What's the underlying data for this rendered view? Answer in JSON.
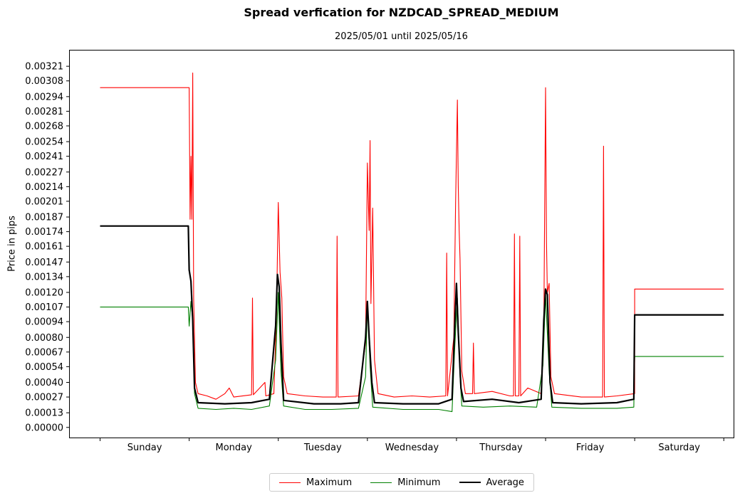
{
  "chart_data": {
    "type": "line",
    "title": "Spread verfication for NZDCAD_SPREAD_MEDIUM",
    "subtitle": "2025/05/01 until 2025/05/16",
    "xlabel": "",
    "ylabel": "Price in pips",
    "categories": [
      "Sunday",
      "Monday",
      "Tuesday",
      "Wednesday",
      "Thursday",
      "Friday",
      "Saturday"
    ],
    "yticks": [
      "0.00000",
      "0.00013",
      "0.00027",
      "0.00040",
      "0.00054",
      "0.00067",
      "0.00080",
      "0.00094",
      "0.00107",
      "0.00120",
      "0.00134",
      "0.00147",
      "0.00161",
      "0.00174",
      "0.00187",
      "0.00201",
      "0.00214",
      "0.00227",
      "0.00241",
      "0.00254",
      "0.00268",
      "0.00281",
      "0.00294",
      "0.00308",
      "0.00321"
    ],
    "ylim": [
      -9e-05,
      0.00335
    ],
    "xlim": [
      -0.34,
      7.11
    ],
    "grid": false,
    "legend_position": "bottom-center",
    "series": [
      {
        "name": "Maximum",
        "color": "#ff0000",
        "points": [
          [
            0.0,
            0.00302
          ],
          [
            1.0,
            0.00302
          ],
          [
            1.01,
            0.00185
          ],
          [
            1.02,
            0.00241
          ],
          [
            1.03,
            0.00185
          ],
          [
            1.04,
            0.00315
          ],
          [
            1.05,
            0.00115
          ],
          [
            1.07,
            0.0004
          ],
          [
            1.1,
            0.0003
          ],
          [
            1.2,
            0.00028
          ],
          [
            1.3,
            0.00025
          ],
          [
            1.4,
            0.0003
          ],
          [
            1.45,
            0.00035
          ],
          [
            1.5,
            0.00027
          ],
          [
            1.7,
            0.00029
          ],
          [
            1.71,
            0.00115
          ],
          [
            1.72,
            0.00029
          ],
          [
            1.85,
            0.0004
          ],
          [
            1.86,
            0.00028
          ],
          [
            1.95,
            0.0003
          ],
          [
            1.98,
            0.001
          ],
          [
            2.0,
            0.002
          ],
          [
            2.02,
            0.00138
          ],
          [
            2.04,
            0.00115
          ],
          [
            2.06,
            0.00045
          ],
          [
            2.1,
            0.0003
          ],
          [
            2.3,
            0.00028
          ],
          [
            2.5,
            0.00027
          ],
          [
            2.65,
            0.00027
          ],
          [
            2.66,
            0.0017
          ],
          [
            2.67,
            0.00027
          ],
          [
            2.9,
            0.00028
          ],
          [
            2.98,
            0.00075
          ],
          [
            3.0,
            0.00235
          ],
          [
            3.02,
            0.00175
          ],
          [
            3.03,
            0.00255
          ],
          [
            3.04,
            0.0011
          ],
          [
            3.06,
            0.00195
          ],
          [
            3.08,
            0.0006
          ],
          [
            3.12,
            0.0003
          ],
          [
            3.3,
            0.00027
          ],
          [
            3.5,
            0.00028
          ],
          [
            3.7,
            0.00027
          ],
          [
            3.88,
            0.00028
          ],
          [
            3.89,
            0.00155
          ],
          [
            3.9,
            0.00028
          ],
          [
            3.97,
            0.0008
          ],
          [
            3.99,
            0.002
          ],
          [
            4.01,
            0.00291
          ],
          [
            4.02,
            0.00215
          ],
          [
            4.03,
            0.00175
          ],
          [
            4.04,
            0.0015
          ],
          [
            4.06,
            0.0005
          ],
          [
            4.1,
            0.0003
          ],
          [
            4.18,
            0.0003
          ],
          [
            4.19,
            0.00075
          ],
          [
            4.2,
            0.0003
          ],
          [
            4.4,
            0.00032
          ],
          [
            4.6,
            0.00028
          ],
          [
            4.64,
            0.00028
          ],
          [
            4.65,
            0.00172
          ],
          [
            4.66,
            0.00028
          ],
          [
            4.7,
            0.00028
          ],
          [
            4.71,
            0.0017
          ],
          [
            4.72,
            0.00028
          ],
          [
            4.8,
            0.00035
          ],
          [
            4.95,
            0.0003
          ],
          [
            4.98,
            0.00085
          ],
          [
            5.0,
            0.00302
          ],
          [
            5.01,
            0.00165
          ],
          [
            5.02,
            0.0012
          ],
          [
            5.04,
            0.00128
          ],
          [
            5.06,
            0.00045
          ],
          [
            5.1,
            0.0003
          ],
          [
            5.4,
            0.00027
          ],
          [
            5.64,
            0.00027
          ],
          [
            5.65,
            0.0025
          ],
          [
            5.66,
            0.00027
          ],
          [
            5.8,
            0.00028
          ],
          [
            6.0,
            0.0003
          ],
          [
            6.0,
            0.00123
          ],
          [
            7.0,
            0.00123
          ]
        ]
      },
      {
        "name": "Minimum",
        "color": "#008000",
        "points": [
          [
            0.0,
            0.00107
          ],
          [
            0.99,
            0.00107
          ],
          [
            1.0,
            0.0009
          ],
          [
            1.02,
            0.00112
          ],
          [
            1.04,
            0.00095
          ],
          [
            1.06,
            0.0003
          ],
          [
            1.1,
            0.00017
          ],
          [
            1.3,
            0.00016
          ],
          [
            1.5,
            0.00017
          ],
          [
            1.7,
            0.00016
          ],
          [
            1.9,
            0.00019
          ],
          [
            1.97,
            0.0006
          ],
          [
            2.0,
            0.0012
          ],
          [
            2.03,
            0.0005
          ],
          [
            2.06,
            0.00019
          ],
          [
            2.3,
            0.00016
          ],
          [
            2.6,
            0.00016
          ],
          [
            2.9,
            0.00017
          ],
          [
            2.98,
            0.00045
          ],
          [
            3.0,
            0.0011
          ],
          [
            3.03,
            0.00055
          ],
          [
            3.06,
            0.00018
          ],
          [
            3.4,
            0.00016
          ],
          [
            3.8,
            0.00016
          ],
          [
            3.95,
            0.00014
          ],
          [
            3.98,
            0.0007
          ],
          [
            4.01,
            0.00115
          ],
          [
            4.04,
            0.00045
          ],
          [
            4.06,
            0.00019
          ],
          [
            4.3,
            0.00018
          ],
          [
            4.6,
            0.00019
          ],
          [
            4.9,
            0.00018
          ],
          [
            4.97,
            0.00055
          ],
          [
            5.0,
            0.00118
          ],
          [
            5.04,
            0.0005
          ],
          [
            5.07,
            0.00018
          ],
          [
            5.4,
            0.00017
          ],
          [
            5.8,
            0.00017
          ],
          [
            5.99,
            0.00018
          ],
          [
            6.0,
            0.00063
          ],
          [
            7.0,
            0.00063
          ]
        ]
      },
      {
        "name": "Average",
        "color": "#000000",
        "points": [
          [
            0.0,
            0.00179
          ],
          [
            0.99,
            0.00179
          ],
          [
            1.0,
            0.0014
          ],
          [
            1.02,
            0.0013
          ],
          [
            1.04,
            0.00095
          ],
          [
            1.06,
            0.00035
          ],
          [
            1.1,
            0.00022
          ],
          [
            1.4,
            0.00021
          ],
          [
            1.7,
            0.00022
          ],
          [
            1.9,
            0.00025
          ],
          [
            1.97,
            0.0009
          ],
          [
            1.99,
            0.00136
          ],
          [
            2.01,
            0.00125
          ],
          [
            2.03,
            0.00075
          ],
          [
            2.06,
            0.00024
          ],
          [
            2.4,
            0.00021
          ],
          [
            2.7,
            0.00021
          ],
          [
            2.9,
            0.00022
          ],
          [
            2.98,
            0.0008
          ],
          [
            3.0,
            0.00112
          ],
          [
            3.02,
            0.0008
          ],
          [
            3.05,
            0.0004
          ],
          [
            3.08,
            0.00022
          ],
          [
            3.4,
            0.00021
          ],
          [
            3.8,
            0.00021
          ],
          [
            3.95,
            0.00025
          ],
          [
            3.98,
            0.0009
          ],
          [
            4.0,
            0.00128
          ],
          [
            4.02,
            0.00085
          ],
          [
            4.05,
            0.00035
          ],
          [
            4.08,
            0.00023
          ],
          [
            4.4,
            0.00025
          ],
          [
            4.7,
            0.00022
          ],
          [
            4.95,
            0.00025
          ],
          [
            4.98,
            0.00095
          ],
          [
            5.0,
            0.00123
          ],
          [
            5.02,
            0.00118
          ],
          [
            5.05,
            0.0004
          ],
          [
            5.08,
            0.00022
          ],
          [
            5.4,
            0.00021
          ],
          [
            5.8,
            0.00022
          ],
          [
            5.99,
            0.00025
          ],
          [
            6.0,
            0.001
          ],
          [
            7.0,
            0.001
          ]
        ]
      }
    ]
  }
}
